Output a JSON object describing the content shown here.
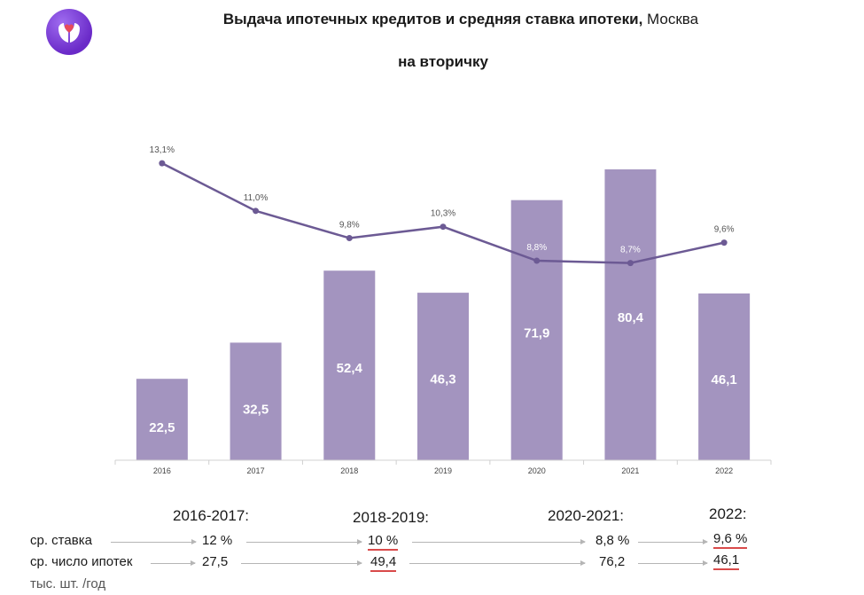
{
  "title": {
    "main": "Выдача ипотечных кредитов  и средняя ставка ипотеки,",
    "city": "Москва",
    "subtitle": "на вторичку"
  },
  "chart_data": {
    "type": "bar+line",
    "categories": [
      "2016",
      "2017",
      "2018",
      "2019",
      "2020",
      "2021",
      "2022"
    ],
    "series": [
      {
        "name": "Выдача ипотечных кредитов, тыс. шт.",
        "type": "bar",
        "values": [
          22.5,
          32.5,
          52.4,
          46.3,
          71.9,
          80.4,
          46.1
        ],
        "labels": [
          "22,5",
          "32,5",
          "52,4",
          "46,3",
          "71,9",
          "80,4",
          "46,1"
        ],
        "color": "#a394bf"
      },
      {
        "name": "Средняя ставка ипотеки, %",
        "type": "line",
        "values": [
          13.1,
          11.0,
          9.8,
          10.3,
          8.8,
          8.7,
          9.6
        ],
        "labels": [
          "13,1%",
          "11,0%",
          "9,8%",
          "10,3%",
          "8,8%",
          "8,7%",
          "9,6%"
        ],
        "color": "#6c5a94"
      }
    ],
    "bar_ylim": [
      0,
      88
    ],
    "line_ylim": [
      0,
      16
    ],
    "grid": false,
    "legend": "none"
  },
  "summary": {
    "periods": [
      "2016-2017:",
      "2018-2019:",
      "2020-2021:",
      "2022:"
    ],
    "rows": [
      {
        "label": "ср. ставка",
        "values": [
          "12 %",
          "10 %",
          "8,8 %",
          "9,6 %"
        ]
      },
      {
        "label": "ср. число ипотек",
        "values": [
          "27,5",
          "49,4",
          "76,2",
          "46,1"
        ]
      }
    ],
    "note": "тыс. шт. /год"
  },
  "colors": {
    "bar": "#a394bf",
    "line": "#6c5a94",
    "underline": "#d94a4a"
  }
}
